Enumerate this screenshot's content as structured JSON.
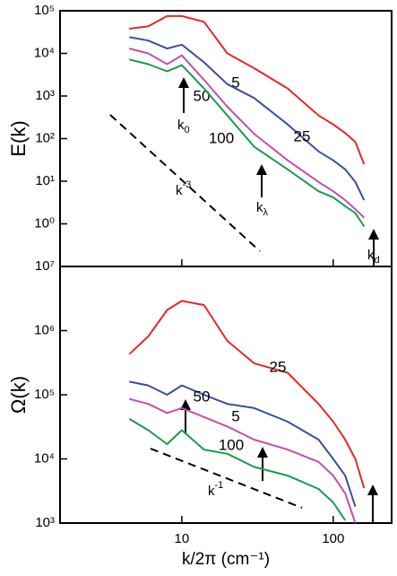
{
  "chart_data": [
    {
      "type": "line",
      "ylabel": "E(k)",
      "log_x": true,
      "log_y": true,
      "xlim": [
        1.57,
        243
      ],
      "ylim": [
        0.1,
        100000
      ],
      "yticks": [
        {
          "value": 100000,
          "label": "10⁵"
        },
        {
          "value": 10000,
          "label": "10⁴"
        },
        {
          "value": 1000,
          "label": "10³"
        },
        {
          "value": 100,
          "label": "10²"
        },
        {
          "value": 10,
          "label": "10¹"
        },
        {
          "value": 1,
          "label": "10⁰"
        }
      ],
      "x": [
        4.5,
        6,
        8,
        10,
        14,
        20,
        30,
        50,
        80,
        100,
        120,
        140,
        160
      ],
      "series": [
        {
          "name": "5",
          "color": "#e8262a",
          "values": [
            38000,
            43000,
            75000,
            75000,
            55000,
            10000,
            4500,
            1500,
            350,
            215,
            135,
            83,
            25
          ]
        },
        {
          "name": "25",
          "color": "#3a4fa0",
          "values": [
            24000,
            20000,
            13000,
            16000,
            6200,
            1900,
            900,
            215,
            50,
            31,
            19,
            9.6,
            3.6
          ]
        },
        {
          "name": "50",
          "color": "#c04faa",
          "values": [
            13000,
            10000,
            5600,
            9000,
            2400,
            560,
            130,
            31,
            9.6,
            5.8,
            3.6,
            2.2,
            1.4
          ]
        },
        {
          "name": "100",
          "color": "#1a9a4a",
          "values": [
            7200,
            5600,
            3800,
            5300,
            1500,
            350,
            65,
            19,
            5.8,
            4.2,
            2.6,
            1.8,
            0.87
          ]
        }
      ],
      "annotations": [
        {
          "text": "k",
          "sub": "0"
        },
        {
          "text": "k",
          "sub": "λ"
        },
        {
          "text": "k",
          "sub": "d"
        },
        {
          "text": "k",
          "sup": "-3"
        }
      ]
    },
    {
      "type": "line",
      "ylabel": "Ω(k)",
      "xlabel": "k/2π (cm⁻¹)",
      "log_x": true,
      "log_y": true,
      "xlim": [
        1.57,
        243
      ],
      "ylim": [
        1000,
        10000000
      ],
      "xticks": [
        10,
        100
      ],
      "yticks": [
        {
          "value": 10000000,
          "label": "10⁷"
        },
        {
          "value": 1000000,
          "label": "10⁶"
        },
        {
          "value": 100000,
          "label": "10⁵"
        },
        {
          "value": 10000,
          "label": "10⁴"
        },
        {
          "value": 1000,
          "label": "10³"
        }
      ],
      "x": [
        4.5,
        6,
        8,
        10,
        14,
        20,
        30,
        50,
        80,
        100,
        120,
        140,
        160
      ],
      "series": [
        {
          "name": "5",
          "color": "#e8262a",
          "values": [
            430000,
            810000,
            2100000,
            2900000,
            2500000,
            690000,
            310000,
            220000,
            72000,
            38000,
            20000,
            10000,
            3500
          ]
        },
        {
          "name": "25",
          "color": "#3a4fa0",
          "values": [
            160000,
            140000,
            100000,
            140000,
            100000,
            72000,
            62000,
            38000,
            20000,
            10000,
            5500,
            1800,
            null
          ]
        },
        {
          "name": "50",
          "color": "#c04faa",
          "values": [
            86000,
            72000,
            52000,
            62000,
            45000,
            32000,
            20000,
            14000,
            9000,
            5500,
            2900,
            1000,
            null
          ]
        },
        {
          "name": "100",
          "color": "#1a9a4a",
          "values": [
            42000,
            28000,
            17000,
            28000,
            14000,
            12000,
            7500,
            5500,
            3400,
            2100,
            1100,
            null,
            null
          ]
        }
      ],
      "annotations": [
        {
          "text": "k",
          "sup": "-1"
        }
      ]
    }
  ]
}
